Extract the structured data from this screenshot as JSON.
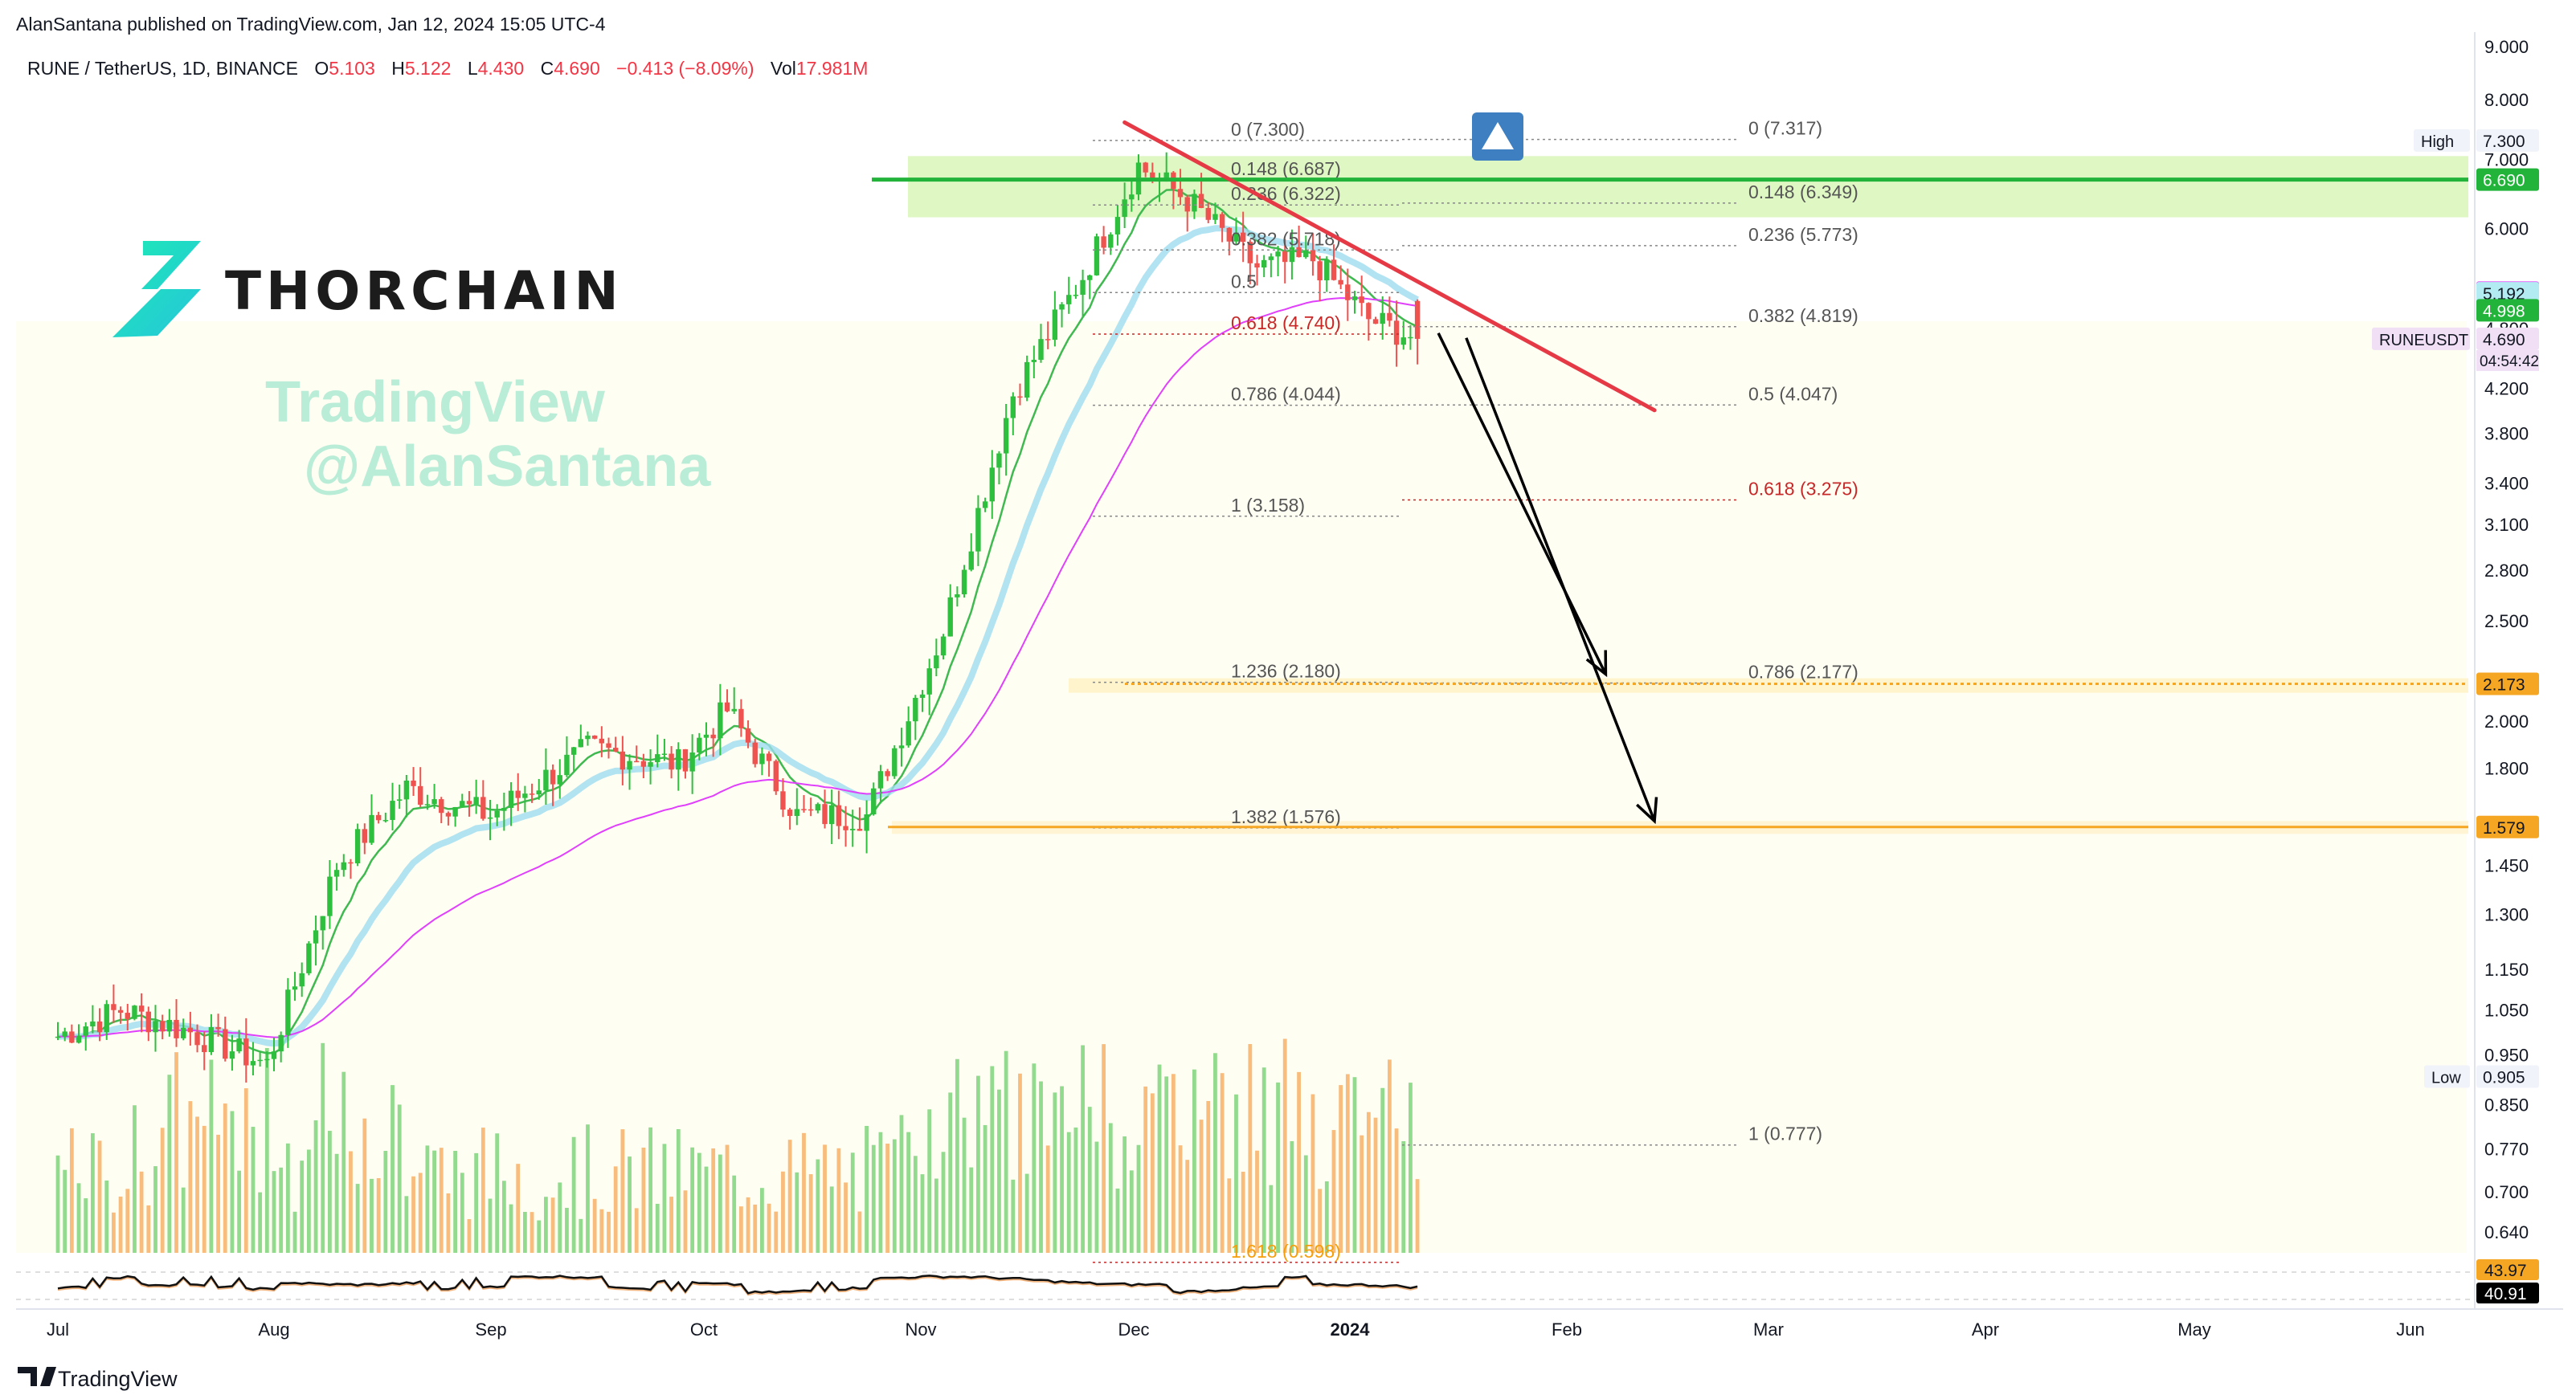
{
  "header": {
    "published": "AlanSantana published on TradingView.com, Jan 12, 2024 15:05 UTC-4"
  },
  "legend": {
    "symbol": "RUNE / TetherUS, 1D, BINANCE",
    "open_label": "O",
    "open": "5.103",
    "high_label": "H",
    "high": "5.122",
    "low_label": "L",
    "low": "4.430",
    "close_label": "C",
    "close": "4.690",
    "change": "−0.413 (−8.09%)",
    "vol_label": "Vol",
    "vol": "17.981M"
  },
  "logo": {
    "text": "THORCHAIN"
  },
  "watermark": {
    "line1": "TradingView",
    "line2": "@AlanSantana"
  },
  "footer": {
    "brand": "TradingView"
  },
  "colors": {
    "up": "#26a69a",
    "up_green": "#2fbf3f",
    "down": "#ef5350",
    "ema_fast": "#3fb950",
    "ema_mid": "#9edcef",
    "ema_slow": "#e040fb",
    "resistance": "#22b43a",
    "trendline": "#e63946",
    "support": "#f5a623",
    "fib_red": "#c62828",
    "fib_gray": "#555555",
    "logo_teal": "#27d9b2"
  },
  "chart_data": {
    "type": "candlestick",
    "symbol": "RUNE / TetherUS",
    "interval": "1D",
    "exchange": "BINANCE",
    "x_axis": {
      "labels": [
        "Jul",
        "Aug",
        "Sep",
        "Oct",
        "Nov",
        "Dec",
        "2024",
        "Feb",
        "Mar",
        "Apr",
        "May",
        "Jun"
      ]
    },
    "y_axis": {
      "scale": "log",
      "range": [
        0.6,
        9.0
      ],
      "ticks": [
        9.0,
        8.0,
        7.0,
        6.0,
        4.8,
        4.2,
        3.8,
        3.4,
        3.1,
        2.8,
        2.5,
        2.0,
        1.8,
        1.45,
        1.3,
        1.15,
        1.05,
        0.95,
        0.85,
        0.77,
        0.7,
        0.64
      ],
      "tick_labels": [
        "9.000",
        "8.000",
        "7.000",
        "6.000",
        "4.800",
        "4.200",
        "3.800",
        "3.400",
        "3.100",
        "2.800",
        "2.500",
        "2.000",
        "1.800",
        "1.450",
        "1.300",
        "1.150",
        "1.050",
        "0.950",
        "0.850",
        "0.770",
        "0.700",
        "0.640"
      ]
    },
    "price_path": {
      "dates": [
        "2023-07-01",
        "2023-07-10",
        "2023-07-20",
        "2023-07-31",
        "2023-08-10",
        "2023-08-20",
        "2023-09-01",
        "2023-09-15",
        "2023-09-28",
        "2023-10-05",
        "2023-10-15",
        "2023-10-25",
        "2023-11-05",
        "2023-11-15",
        "2023-11-25",
        "2023-12-03",
        "2023-12-10",
        "2023-12-20",
        "2023-12-28",
        "2024-01-05",
        "2024-01-12"
      ],
      "close": [
        0.99,
        1.05,
        1.0,
        0.93,
        1.45,
        1.72,
        1.62,
        1.88,
        1.82,
        2.05,
        1.62,
        1.62,
        2.45,
        4.15,
        5.4,
        6.9,
        6.4,
        5.5,
        5.6,
        4.9,
        4.69
      ]
    },
    "last_bar": {
      "open": 5.103,
      "high": 5.122,
      "low": 4.43,
      "close": 4.69,
      "volume": "17.981M"
    },
    "moving_averages": [
      {
        "name": "EMA fast",
        "color": "#3fb950"
      },
      {
        "name": "EMA mid",
        "color": "#9edcef"
      },
      {
        "name": "EMA slow",
        "color": "#e040fb"
      }
    ],
    "fib_retracement_left": [
      {
        "label": "0 (7.300)",
        "value": 7.3
      },
      {
        "label": "0.148 (6.687)",
        "value": 6.687
      },
      {
        "label": "0.236 (6.322)",
        "value": 6.322
      },
      {
        "label": "0.382 (5.718)",
        "value": 5.718
      },
      {
        "label": "0.5",
        "value": 5.2
      },
      {
        "label": "0.618 (4.740)",
        "value": 4.74
      },
      {
        "label": "0.786 (4.044)",
        "value": 4.044
      },
      {
        "label": "1 (3.158)",
        "value": 3.158
      },
      {
        "label": "1.236 (2.180)",
        "value": 2.18
      },
      {
        "label": "1.382 (1.576)",
        "value": 1.576
      },
      {
        "label": "1.618 (0.598)",
        "value": 0.598
      }
    ],
    "fib_retracement_right": [
      {
        "label": "0 (7.317)",
        "value": 7.317
      },
      {
        "label": "0.148 (6.349)",
        "value": 6.349
      },
      {
        "label": "0.236 (5.773)",
        "value": 5.773
      },
      {
        "label": "0.382 (4.819)",
        "value": 4.819
      },
      {
        "label": "0.5 (4.047)",
        "value": 4.047
      },
      {
        "label": "0.618 (3.275)",
        "value": 3.275
      },
      {
        "label": "0.786 (2.177)",
        "value": 2.177
      },
      {
        "label": "1 (0.777)",
        "value": 0.777
      }
    ],
    "horizontal_levels": [
      {
        "name": "resistance",
        "value": 6.69,
        "label": "6.690"
      },
      {
        "name": "support-1",
        "value": 2.173,
        "label": "2.173"
      },
      {
        "name": "support-2",
        "value": 1.579,
        "label": "1.579"
      }
    ],
    "trendline": {
      "from": {
        "date": "2023-12-01",
        "value": 7.6
      },
      "to": {
        "date": "2024-02-15",
        "value": 4.0
      }
    },
    "arrows": [
      {
        "from": {
          "date": "2024-01-15",
          "value": 4.75
        },
        "to": {
          "date": "2024-02-08",
          "value": 2.22
        }
      },
      {
        "from": {
          "date": "2024-01-19",
          "value": 4.7
        },
        "to": {
          "date": "2024-02-15",
          "value": 1.6
        }
      }
    ],
    "price_labels": [
      {
        "text": "High",
        "value": "7.300",
        "kind": "marker"
      },
      {
        "text": "",
        "value": "6.690",
        "kind": "resistance"
      },
      {
        "text": "",
        "value": "5.199",
        "kind": "ema_slow"
      },
      {
        "text": "",
        "value": "5.192",
        "kind": "ema_mid"
      },
      {
        "text": "",
        "value": "4.998",
        "kind": "ema_fast"
      },
      {
        "text": "RUNEUSDT",
        "value": "4.690",
        "kind": "last"
      },
      {
        "text": "",
        "value": "2.173",
        "kind": "support"
      },
      {
        "text": "",
        "value": "1.579",
        "kind": "support"
      },
      {
        "text": "Low",
        "value": "0.905",
        "kind": "marker"
      }
    ],
    "countdown": "04:54:42",
    "rsi": {
      "values_labels": [
        "43.97",
        "40.91"
      ]
    }
  }
}
